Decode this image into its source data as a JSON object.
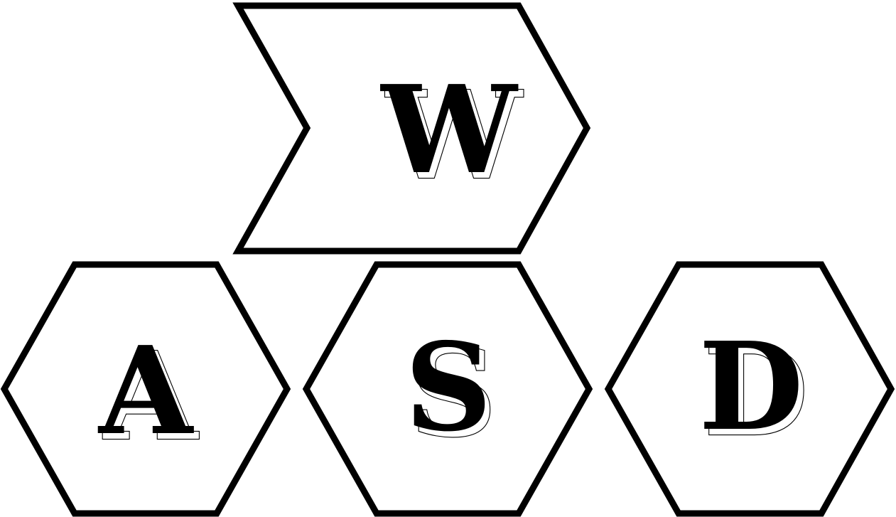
{
  "keys": [
    {
      "id": "w",
      "label": "W",
      "icon": "hexagon-icon"
    },
    {
      "id": "a",
      "label": "A",
      "icon": "hexagon-icon"
    },
    {
      "id": "s",
      "label": "S",
      "icon": "hexagon-icon"
    },
    {
      "id": "d",
      "label": "D",
      "icon": "hexagon-icon"
    }
  ],
  "colors": {
    "stroke": "#000000",
    "background": "#ffffff"
  }
}
